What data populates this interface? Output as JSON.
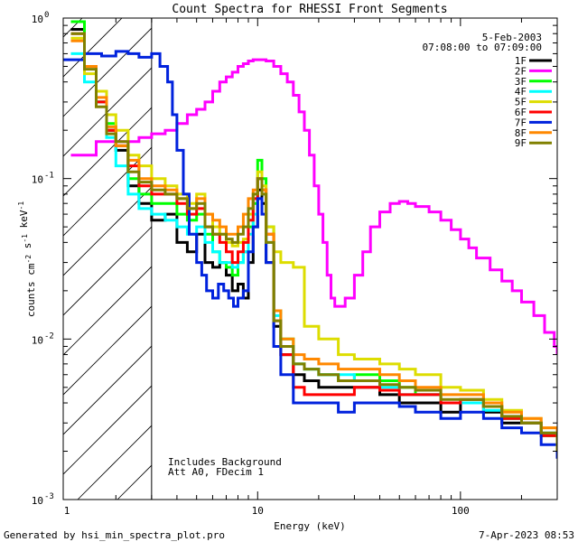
{
  "chart_data": {
    "type": "line",
    "title": "Count Spectra for RHESSI Front Segments",
    "date": "5-Feb-2003",
    "time_range": "07:08:00 to 07:09:00",
    "xlabel": "Energy (keV)",
    "ylabel": "counts cm-2 s-1 keV-1",
    "xscale": "log",
    "yscale": "log",
    "xlim": [
      1.1,
      300
    ],
    "ylim": [
      0.001,
      1
    ],
    "x_ticks": [
      {
        "value": 1,
        "label": "1"
      },
      {
        "value": 10,
        "label": "10"
      },
      {
        "value": 100,
        "label": "100"
      }
    ],
    "y_ticks": [
      {
        "value": 0.001,
        "label": "10",
        "exp": "-3"
      },
      {
        "value": 0.01,
        "label": "10",
        "exp": "-2"
      },
      {
        "value": 0.1,
        "label": "10",
        "exp": "-1"
      },
      {
        "value": 1,
        "label": "10",
        "exp": "0"
      }
    ],
    "hatched_region": [
      1.1,
      3.0
    ],
    "annotations": [
      "Includes Background",
      "Att A0, FDecim 1"
    ],
    "series": [
      {
        "name": "1F",
        "color": "#000000",
        "x": [
          1.2,
          1.4,
          1.6,
          1.8,
          2.0,
          2.3,
          2.6,
          3.0,
          3.5,
          4.0,
          4.5,
          5.0,
          5.5,
          6.0,
          6.5,
          7.0,
          7.5,
          8.0,
          8.5,
          9.0,
          9.5,
          10.0,
          10.5,
          11.0,
          12,
          13,
          15,
          17,
          20,
          25,
          30,
          40,
          50,
          60,
          80,
          100,
          130,
          160,
          200,
          250,
          300
        ],
        "y": [
          0.85,
          0.5,
          0.3,
          0.2,
          0.15,
          0.09,
          0.07,
          0.055,
          0.06,
          0.04,
          0.035,
          0.045,
          0.03,
          0.028,
          0.03,
          0.025,
          0.02,
          0.022,
          0.018,
          0.03,
          0.05,
          0.085,
          0.07,
          0.03,
          0.012,
          0.008,
          0.006,
          0.0055,
          0.005,
          0.005,
          0.005,
          0.0045,
          0.004,
          0.004,
          0.0035,
          0.004,
          0.0035,
          0.003,
          0.003,
          0.0025,
          0.0018
        ]
      },
      {
        "name": "2F",
        "color": "#ff00ff",
        "x": [
          1.2,
          1.4,
          1.6,
          1.8,
          2.0,
          2.3,
          2.6,
          3.0,
          3.5,
          4.0,
          4.5,
          5.0,
          5.5,
          6.0,
          6.5,
          7.0,
          7.5,
          8.0,
          8.5,
          9.0,
          9.5,
          10.0,
          10.5,
          11.0,
          12,
          13,
          14,
          15,
          16,
          17,
          18,
          19,
          20,
          21,
          22,
          23,
          24,
          25,
          27,
          30,
          33,
          36,
          40,
          45,
          50,
          55,
          60,
          70,
          80,
          90,
          100,
          110,
          120,
          140,
          160,
          180,
          200,
          230,
          260,
          290,
          300
        ],
        "y": [
          0.14,
          0.14,
          0.17,
          0.17,
          0.17,
          0.17,
          0.18,
          0.19,
          0.2,
          0.22,
          0.25,
          0.27,
          0.3,
          0.35,
          0.4,
          0.43,
          0.46,
          0.5,
          0.52,
          0.54,
          0.55,
          0.55,
          0.55,
          0.54,
          0.5,
          0.45,
          0.4,
          0.33,
          0.26,
          0.2,
          0.14,
          0.09,
          0.06,
          0.04,
          0.025,
          0.018,
          0.016,
          0.016,
          0.018,
          0.025,
          0.035,
          0.05,
          0.062,
          0.07,
          0.072,
          0.07,
          0.067,
          0.062,
          0.055,
          0.048,
          0.042,
          0.037,
          0.032,
          0.027,
          0.023,
          0.02,
          0.017,
          0.014,
          0.011,
          0.009,
          0.008
        ]
      },
      {
        "name": "3F",
        "color": "#00ff00",
        "x": [
          1.2,
          1.4,
          1.6,
          1.8,
          2.0,
          2.3,
          2.6,
          3.0,
          3.5,
          4.0,
          4.5,
          5.0,
          5.5,
          6.0,
          6.5,
          7.0,
          7.5,
          8.0,
          8.5,
          9.0,
          9.5,
          10.0,
          10.5,
          11.0,
          12,
          13,
          15,
          17,
          20,
          25,
          30,
          40,
          50,
          60,
          80,
          100,
          130,
          160,
          200,
          250,
          300
        ],
        "y": [
          0.95,
          0.5,
          0.3,
          0.22,
          0.16,
          0.1,
          0.08,
          0.07,
          0.07,
          0.06,
          0.055,
          0.06,
          0.045,
          0.035,
          0.03,
          0.028,
          0.025,
          0.03,
          0.035,
          0.05,
          0.07,
          0.13,
          0.1,
          0.05,
          0.015,
          0.01,
          0.007,
          0.0065,
          0.006,
          0.0055,
          0.006,
          0.0055,
          0.005,
          0.0045,
          0.004,
          0.0042,
          0.0038,
          0.0032,
          0.003,
          0.0025,
          0.002
        ]
      },
      {
        "name": "4F",
        "color": "#00ffff",
        "x": [
          1.2,
          1.4,
          1.6,
          1.8,
          2.0,
          2.3,
          2.6,
          3.0,
          3.5,
          4.0,
          4.5,
          5.0,
          5.5,
          6.0,
          6.5,
          7.0,
          7.5,
          8.0,
          8.5,
          9.0,
          9.5,
          10.0,
          10.5,
          11.0,
          12,
          13,
          15,
          17,
          20,
          25,
          30,
          40,
          50,
          60,
          80,
          100,
          130,
          160,
          200,
          250,
          300
        ],
        "y": [
          0.6,
          0.4,
          0.3,
          0.18,
          0.12,
          0.08,
          0.065,
          0.06,
          0.055,
          0.05,
          0.045,
          0.05,
          0.04,
          0.035,
          0.03,
          0.03,
          0.028,
          0.03,
          0.035,
          0.045,
          0.06,
          0.1,
          0.08,
          0.04,
          0.014,
          0.009,
          0.007,
          0.0065,
          0.006,
          0.006,
          0.0055,
          0.005,
          0.0045,
          0.0045,
          0.004,
          0.004,
          0.0036,
          0.0032,
          0.003,
          0.0026,
          0.002
        ]
      },
      {
        "name": "5F",
        "color": "#dddd00",
        "x": [
          1.2,
          1.4,
          1.6,
          1.8,
          2.0,
          2.3,
          2.6,
          3.0,
          3.5,
          4.0,
          4.5,
          5.0,
          5.5,
          6.0,
          6.5,
          7.0,
          7.5,
          8.0,
          8.5,
          9.0,
          9.5,
          10.0,
          10.5,
          11.0,
          12,
          13,
          15,
          17,
          20,
          25,
          30,
          40,
          50,
          60,
          80,
          100,
          130,
          160,
          200,
          250,
          300
        ],
        "y": [
          0.75,
          0.45,
          0.35,
          0.25,
          0.2,
          0.14,
          0.12,
          0.1,
          0.09,
          0.08,
          0.07,
          0.08,
          0.06,
          0.05,
          0.045,
          0.04,
          0.038,
          0.04,
          0.042,
          0.06,
          0.08,
          0.11,
          0.09,
          0.05,
          0.035,
          0.03,
          0.028,
          0.012,
          0.01,
          0.008,
          0.0075,
          0.007,
          0.0065,
          0.006,
          0.005,
          0.0048,
          0.0042,
          0.0036,
          0.0032,
          0.0028,
          0.0022
        ]
      },
      {
        "name": "6F",
        "color": "#ff0000",
        "x": [
          1.2,
          1.4,
          1.6,
          1.8,
          2.0,
          2.3,
          2.6,
          3.0,
          3.5,
          4.0,
          4.5,
          5.0,
          5.5,
          6.0,
          6.5,
          7.0,
          7.5,
          8.0,
          8.5,
          9.0,
          9.5,
          10.0,
          10.5,
          11.0,
          12,
          13,
          15,
          17,
          20,
          25,
          30,
          40,
          50,
          60,
          80,
          100,
          130,
          160,
          200,
          250,
          300
        ],
        "y": [
          0.8,
          0.5,
          0.3,
          0.2,
          0.16,
          0.12,
          0.09,
          0.08,
          0.08,
          0.07,
          0.06,
          0.065,
          0.05,
          0.045,
          0.04,
          0.035,
          0.03,
          0.035,
          0.04,
          0.055,
          0.075,
          0.1,
          0.085,
          0.045,
          0.013,
          0.008,
          0.005,
          0.0045,
          0.0045,
          0.0045,
          0.005,
          0.0048,
          0.0045,
          0.0045,
          0.004,
          0.0042,
          0.0038,
          0.0032,
          0.003,
          0.0025,
          0.002
        ]
      },
      {
        "name": "7F",
        "color": "#0022dd",
        "x": [
          1.1,
          1.4,
          1.7,
          2.0,
          2.3,
          2.6,
          3.0,
          3.3,
          3.6,
          3.8,
          4.0,
          4.3,
          4.6,
          5.0,
          5.3,
          5.6,
          6.0,
          6.4,
          6.8,
          7.2,
          7.6,
          8.0,
          8.5,
          9.0,
          9.5,
          10.0,
          10.5,
          11.0,
          12,
          13,
          15,
          17,
          20,
          25,
          30,
          40,
          50,
          60,
          80,
          100,
          130,
          160,
          200,
          250,
          300
        ],
        "y": [
          0.55,
          0.6,
          0.58,
          0.62,
          0.6,
          0.57,
          0.6,
          0.5,
          0.4,
          0.25,
          0.15,
          0.08,
          0.045,
          0.03,
          0.025,
          0.02,
          0.018,
          0.022,
          0.02,
          0.018,
          0.016,
          0.018,
          0.02,
          0.035,
          0.05,
          0.075,
          0.06,
          0.03,
          0.009,
          0.006,
          0.004,
          0.004,
          0.004,
          0.0035,
          0.004,
          0.004,
          0.0038,
          0.0035,
          0.0032,
          0.0035,
          0.0032,
          0.0028,
          0.0026,
          0.0022,
          0.0018
        ]
      },
      {
        "name": "8F",
        "color": "#ff8800",
        "x": [
          1.2,
          1.4,
          1.6,
          1.8,
          2.0,
          2.3,
          2.6,
          3.0,
          3.5,
          4.0,
          4.5,
          5.0,
          5.5,
          6.0,
          6.5,
          7.0,
          7.5,
          8.0,
          8.5,
          9.0,
          9.5,
          10.0,
          10.5,
          11.0,
          12,
          13,
          15,
          17,
          20,
          25,
          30,
          40,
          50,
          60,
          80,
          100,
          130,
          160,
          200,
          250,
          300
        ],
        "y": [
          0.72,
          0.5,
          0.32,
          0.21,
          0.16,
          0.13,
          0.1,
          0.09,
          0.085,
          0.075,
          0.065,
          0.075,
          0.06,
          0.055,
          0.05,
          0.045,
          0.045,
          0.05,
          0.06,
          0.075,
          0.085,
          0.1,
          0.085,
          0.045,
          0.015,
          0.01,
          0.008,
          0.0075,
          0.007,
          0.0065,
          0.0065,
          0.006,
          0.0055,
          0.005,
          0.0045,
          0.0045,
          0.004,
          0.0035,
          0.0032,
          0.0028,
          0.0022
        ]
      },
      {
        "name": "9F",
        "color": "#808000",
        "x": [
          1.2,
          1.4,
          1.6,
          1.8,
          2.0,
          2.3,
          2.6,
          3.0,
          3.5,
          4.0,
          4.5,
          5.0,
          5.5,
          6.0,
          6.5,
          7.0,
          7.5,
          8.0,
          8.5,
          9.0,
          9.5,
          10.0,
          10.5,
          11.0,
          12,
          13,
          15,
          17,
          20,
          25,
          30,
          40,
          50,
          60,
          80,
          100,
          130,
          160,
          200,
          250,
          300
        ],
        "y": [
          0.8,
          0.48,
          0.28,
          0.19,
          0.17,
          0.11,
          0.095,
          0.085,
          0.08,
          0.075,
          0.065,
          0.07,
          0.05,
          0.045,
          0.045,
          0.042,
          0.04,
          0.045,
          0.05,
          0.065,
          0.08,
          0.1,
          0.08,
          0.04,
          0.013,
          0.009,
          0.007,
          0.0065,
          0.006,
          0.0055,
          0.0055,
          0.0052,
          0.005,
          0.0048,
          0.0042,
          0.0042,
          0.0038,
          0.0033,
          0.003,
          0.0026,
          0.002
        ]
      }
    ]
  },
  "footer": {
    "generated_by": "Generated by hsi_min_spectra_plot.pro",
    "timestamp": "7-Apr-2023 08:53"
  }
}
